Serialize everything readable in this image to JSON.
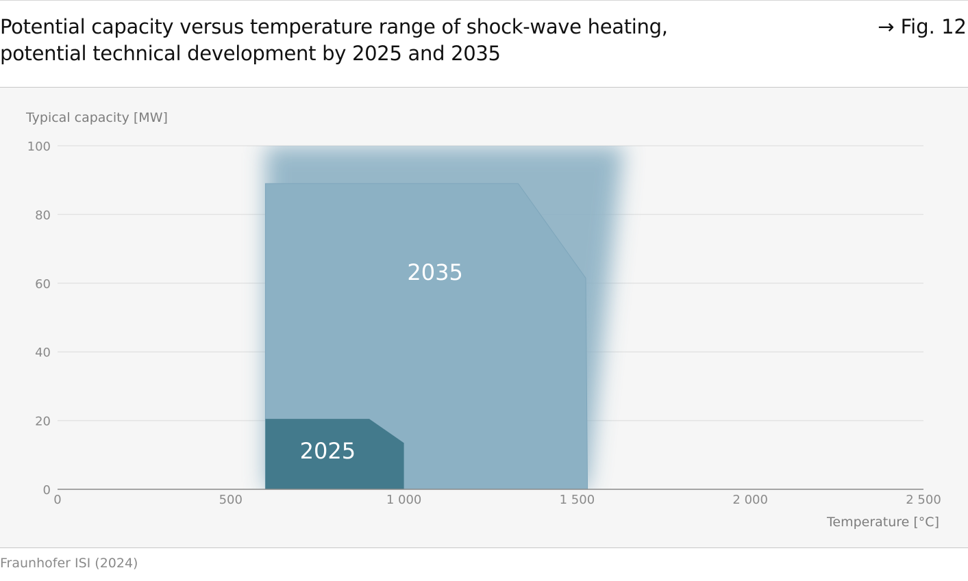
{
  "figure": {
    "title_line1": "Potential capacity versus temperature range of shock-wave heating,",
    "title_line2": "potential technical development by 2025 and 2035",
    "fig_ref": "→ Fig. 12",
    "source": "Fraunhofer ISI (2024)"
  },
  "chart_data": {
    "type": "area",
    "ylabel": "Typical capacity [MW]",
    "xlabel": "Temperature [°C]",
    "xlim": [
      0,
      2500
    ],
    "ylim": [
      0,
      100
    ],
    "x_ticks": [
      0,
      500,
      1000,
      1500,
      2000,
      2500
    ],
    "x_tick_labels": [
      "0",
      "500",
      "1 000",
      "1 500",
      "2 000",
      "2 500"
    ],
    "y_ticks": [
      0,
      20,
      40,
      60,
      80,
      100
    ],
    "y_tick_labels": [
      "0",
      "20",
      "40",
      "60",
      "80",
      "100"
    ],
    "grid": true,
    "series": [
      {
        "name": "2035",
        "color": "#8cb1c4",
        "fade_to_ymax": true,
        "points": [
          [
            600,
            0
          ],
          [
            600,
            89
          ],
          [
            1330,
            89
          ],
          [
            1525,
            61.5
          ],
          [
            1530,
            0
          ]
        ]
      },
      {
        "name": "2025",
        "color": "#437a8c",
        "points": [
          [
            600,
            0
          ],
          [
            600,
            20.5
          ],
          [
            900,
            20.5
          ],
          [
            1000,
            13.5
          ],
          [
            1000,
            0
          ]
        ]
      }
    ],
    "colors": {
      "grid": "#e3e3e3",
      "axis": "#8a8a8a",
      "tick_text": "#8a8a8a",
      "label_text": "#ffffff"
    }
  }
}
